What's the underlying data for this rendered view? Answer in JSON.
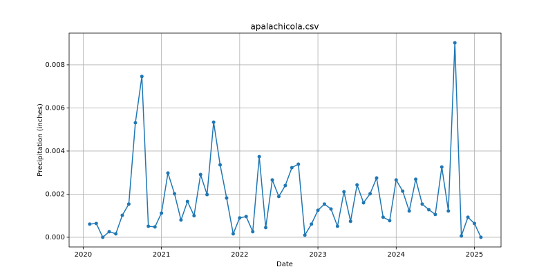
{
  "chart_data": {
    "type": "line",
    "title": "apalachicola.csv",
    "x_label": "Date",
    "y_label": "Precipitation (inches)",
    "x": [
      2020.083,
      2020.167,
      2020.25,
      2020.333,
      2020.417,
      2020.5,
      2020.583,
      2020.667,
      2020.75,
      2020.833,
      2020.917,
      2021.0,
      2021.083,
      2021.167,
      2021.25,
      2021.333,
      2021.417,
      2021.5,
      2021.583,
      2021.667,
      2021.75,
      2021.833,
      2021.917,
      2022.0,
      2022.083,
      2022.167,
      2022.25,
      2022.333,
      2022.417,
      2022.5,
      2022.583,
      2022.667,
      2022.75,
      2022.833,
      2022.917,
      2023.0,
      2023.083,
      2023.167,
      2023.25,
      2023.333,
      2023.417,
      2023.5,
      2023.583,
      2023.667,
      2023.75,
      2023.833,
      2023.917,
      2024.0,
      2024.083,
      2024.167,
      2024.25,
      2024.333,
      2024.417,
      2024.5,
      2024.583,
      2024.667,
      2024.75,
      2024.833,
      2024.917,
      2025.0,
      2025.083
    ],
    "series": [
      {
        "color": "#1f77b4",
        "values": [
          0.00061,
          0.00064,
          0,
          0.00026,
          0.00016,
          0.00102,
          0.00154,
          0.00531,
          0.00746,
          0.00051,
          0.00048,
          0.00112,
          0.00298,
          0.00202,
          0.0008,
          0.00166,
          0.001,
          0.00291,
          0.00198,
          0.00534,
          0.00336,
          0.00182,
          0.00016,
          0.0009,
          0.00096,
          0.00026,
          0.00374,
          0.00045,
          0.00266,
          0.00189,
          0.0024,
          0.00323,
          0.00339,
          0.0001,
          0.00061,
          0.00125,
          0.00154,
          0.00131,
          0.00051,
          0.00211,
          0.00074,
          0.00243,
          0.0016,
          0.00202,
          0.00275,
          0.00093,
          0.00077,
          0.00266,
          0.00214,
          0.00122,
          0.00269,
          0.00154,
          0.00128,
          0.00106,
          0.00326,
          0.00122,
          0.00902,
          6e-05,
          0.00093,
          0.00064,
          0
        ]
      }
    ],
    "xlim": [
      2019.82,
      2025.34
    ],
    "xticks": [
      2020,
      2021,
      2022,
      2023,
      2024,
      2025
    ],
    "ylim": [
      -0.00045,
      0.00947
    ],
    "yticks": [
      {
        "value": 0,
        "label": "0.000"
      },
      0.002,
      0.004,
      0.006,
      0.008
    ],
    "grid": true,
    "markers": true
  }
}
